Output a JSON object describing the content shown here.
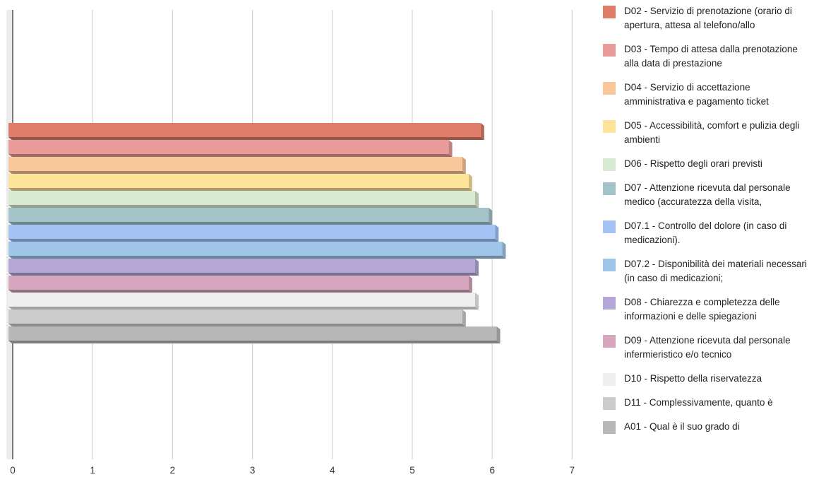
{
  "chart_data": {
    "type": "bar",
    "orientation": "horizontal",
    "xlim": [
      0,
      7
    ],
    "xticks": [
      "0",
      "1",
      "2",
      "3",
      "4",
      "5",
      "6",
      "7"
    ],
    "grid": true,
    "legend_position": "right",
    "series": [
      {
        "name": "D02 - Servizio di prenotazione (orario di apertura, attesa al telefono/allo",
        "value": 5.9,
        "color": "#dd7d6a"
      },
      {
        "name": "D03 - Tempo di attesa dalla prenotazione alla data di prestazione",
        "value": 5.5,
        "color": "#ea9c9b"
      },
      {
        "name": "D04 - Servizio di accettazione amministrativa e pagamento ticket",
        "value": 5.67,
        "color": "#f8c89b"
      },
      {
        "name": "D05 - Accessibilità, comfort e pulizia degli ambienti",
        "value": 5.75,
        "color": "#fde49a"
      },
      {
        "name": "D06 - Rispetto degli orari previsti",
        "value": 5.83,
        "color": "#d9ead3"
      },
      {
        "name": "D07 - Attenzione ricevuta dal personale medico (accuratezza della visita,",
        "value": 6.0,
        "color": "#a2c4c9"
      },
      {
        "name": "D07.1 - Controllo del dolore (in caso di medicazioni).",
        "value": 6.08,
        "color": "#a4c2f4"
      },
      {
        "name": "D07.2 - Disponibilità dei materiali necessari (in caso di medicazioni;",
        "value": 6.17,
        "color": "#9fc5e8"
      },
      {
        "name": "D08 - Chiarezza e completezza delle informazioni e delle spiegazioni",
        "value": 5.83,
        "color": "#b4a7d6"
      },
      {
        "name": "D09 - Attenzione ricevuta dal personale infermieristico e/o tecnico",
        "value": 5.75,
        "color": "#d5a6bd"
      },
      {
        "name": "D10 - Rispetto della riservatezza",
        "value": 5.83,
        "color": "#eeeeee"
      },
      {
        "name": "D11 - Complessivamente, quanto è",
        "value": 5.67,
        "color": "#cccccc"
      },
      {
        "name": "A01 - Qual è il suo grado di",
        "value": 6.1,
        "color": "#b7b7b7"
      }
    ]
  }
}
